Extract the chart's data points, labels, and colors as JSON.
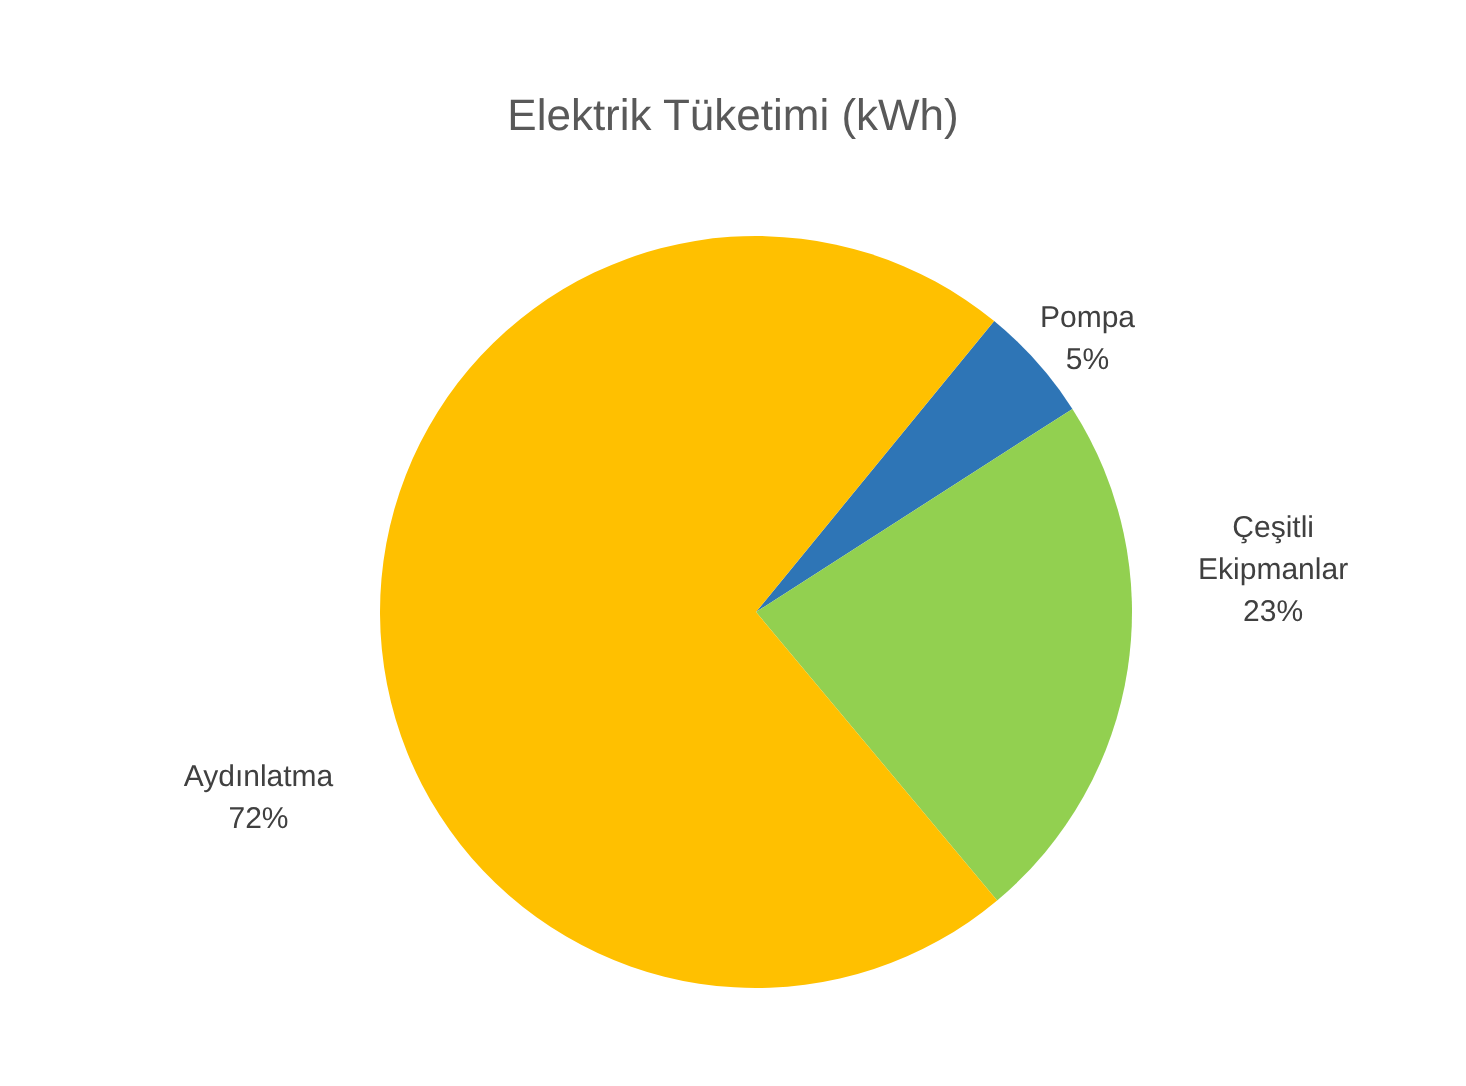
{
  "chart_data": {
    "type": "pie",
    "title": "Elektrik Tüketimi (kWh)",
    "categories": [
      "Pompa",
      "Çeşitli Ekipmanlar",
      "Aydınlatma"
    ],
    "values": [
      5,
      23,
      72
    ],
    "colors": [
      "#2e75b6",
      "#92d050",
      "#ffc000"
    ],
    "value_labels": [
      "5%",
      "23%",
      "72%"
    ],
    "legend": false
  }
}
